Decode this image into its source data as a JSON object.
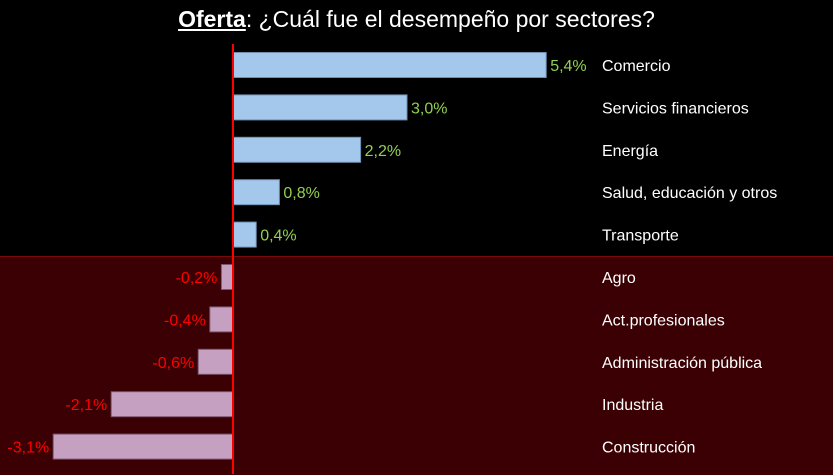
{
  "chart_data": {
    "type": "bar",
    "orientation": "horizontal",
    "title_bold": "Oferta",
    "title_rest": ": ¿Cuál fue el desempeño por sectores?",
    "categories": [
      "Comercio",
      "Servicios financieros",
      "Energía",
      "Salud, educación y otros",
      "Transporte",
      "Agro",
      "Act.profesionales",
      "Administración pública",
      "Industria",
      "Construcción"
    ],
    "values": [
      5.4,
      3.0,
      2.2,
      0.8,
      0.4,
      -0.2,
      -0.4,
      -0.6,
      -2.1,
      -3.1
    ],
    "labels": [
      "5,4%",
      "3,0%",
      "2,2%",
      "0,8%",
      "0,4%",
      "-0,2%",
      "-0,4%",
      "-0,6%",
      "-2,1%",
      "-3,1%"
    ],
    "colors": {
      "positive_bar": "#a4c8ec",
      "negative_bar": "#c6a0c0",
      "positive_label": "#92d050",
      "negative_label": "#ff0000",
      "zero_line": "#ff0000",
      "negative_background": "#3a0003"
    },
    "grid": false
  }
}
